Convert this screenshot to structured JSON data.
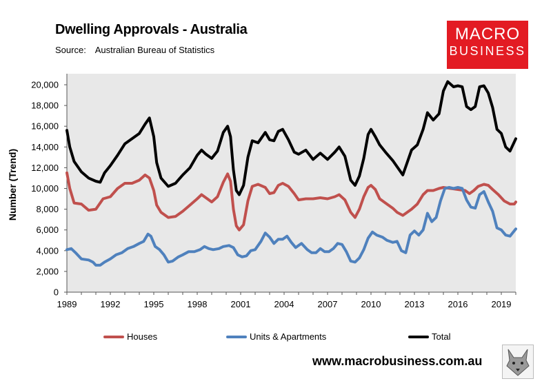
{
  "header": {
    "title": "Dwelling Approvals - Australia",
    "source_label": "Source:",
    "source_value": "Australian Bureau of Statistics"
  },
  "logo": {
    "line1": "MACRO",
    "line2": "BUSINESS"
  },
  "footer": {
    "website": "www.macrobusiness.com.au"
  },
  "colors": {
    "houses": "#c0504d",
    "units": "#4f81bd",
    "total": "#000000",
    "brand": "#e31b23"
  },
  "chart_data": {
    "type": "line",
    "title": "Dwelling Approvals - Australia",
    "xlabel": "",
    "ylabel": "Number (Trend)",
    "xlim": [
      1989,
      2020
    ],
    "ylim": [
      0,
      21000
    ],
    "x_ticks": [
      1989,
      1992,
      1995,
      1998,
      2001,
      2004,
      2007,
      2010,
      2013,
      2016,
      2019
    ],
    "y_ticks": [
      0,
      2000,
      4000,
      6000,
      8000,
      10000,
      12000,
      14000,
      16000,
      18000,
      20000
    ],
    "y_tick_labels": [
      "0",
      "2,000",
      "4,000",
      "6,000",
      "8,000",
      "10,000",
      "12,000",
      "14,000",
      "16,000",
      "18,000",
      "20,000"
    ],
    "grid": false,
    "legend_position": "bottom",
    "series": [
      {
        "name": "Houses",
        "color": "#c0504d",
        "points": [
          [
            1989,
            11500
          ],
          [
            1989.2,
            10000
          ],
          [
            1989.5,
            8600
          ],
          [
            1990,
            8500
          ],
          [
            1990.5,
            7900
          ],
          [
            1991,
            8000
          ],
          [
            1991.5,
            9000
          ],
          [
            1992,
            9200
          ],
          [
            1992.5,
            10000
          ],
          [
            1993,
            10500
          ],
          [
            1993.5,
            10500
          ],
          [
            1994,
            10800
          ],
          [
            1994.4,
            11300
          ],
          [
            1994.7,
            11000
          ],
          [
            1995,
            9800
          ],
          [
            1995.2,
            8400
          ],
          [
            1995.5,
            7700
          ],
          [
            1996,
            7200
          ],
          [
            1996.5,
            7300
          ],
          [
            1997,
            7800
          ],
          [
            1997.5,
            8400
          ],
          [
            1998,
            9000
          ],
          [
            1998.3,
            9400
          ],
          [
            1998.6,
            9100
          ],
          [
            1999,
            8700
          ],
          [
            1999.4,
            9200
          ],
          [
            1999.8,
            10600
          ],
          [
            2000.1,
            11400
          ],
          [
            2000.3,
            10700
          ],
          [
            2000.5,
            8000
          ],
          [
            2000.7,
            6400
          ],
          [
            2000.9,
            6000
          ],
          [
            2001.2,
            6500
          ],
          [
            2001.5,
            8800
          ],
          [
            2001.8,
            10200
          ],
          [
            2002.2,
            10400
          ],
          [
            2002.7,
            10100
          ],
          [
            2003,
            9500
          ],
          [
            2003.3,
            9600
          ],
          [
            2003.6,
            10300
          ],
          [
            2003.9,
            10500
          ],
          [
            2004.3,
            10200
          ],
          [
            2004.7,
            9500
          ],
          [
            2005,
            8900
          ],
          [
            2005.5,
            9000
          ],
          [
            2006,
            9000
          ],
          [
            2006.5,
            9100
          ],
          [
            2007,
            9000
          ],
          [
            2007.5,
            9200
          ],
          [
            2007.8,
            9400
          ],
          [
            2008.2,
            8900
          ],
          [
            2008.6,
            7700
          ],
          [
            2008.9,
            7200
          ],
          [
            2009.2,
            8000
          ],
          [
            2009.5,
            9200
          ],
          [
            2009.8,
            10100
          ],
          [
            2010,
            10300
          ],
          [
            2010.3,
            9900
          ],
          [
            2010.6,
            9000
          ],
          [
            2011,
            8600
          ],
          [
            2011.5,
            8100
          ],
          [
            2011.8,
            7700
          ],
          [
            2012.2,
            7400
          ],
          [
            2012.5,
            7700
          ],
          [
            2012.8,
            8000
          ],
          [
            2013.2,
            8500
          ],
          [
            2013.6,
            9400
          ],
          [
            2013.9,
            9800
          ],
          [
            2014.3,
            9800
          ],
          [
            2014.7,
            10000
          ],
          [
            2015,
            10100
          ],
          [
            2015.5,
            10000
          ],
          [
            2016,
            9900
          ],
          [
            2016.5,
            9800
          ],
          [
            2016.8,
            9500
          ],
          [
            2017.1,
            9800
          ],
          [
            2017.4,
            10200
          ],
          [
            2017.8,
            10400
          ],
          [
            2018.1,
            10300
          ],
          [
            2018.4,
            9900
          ],
          [
            2018.8,
            9400
          ],
          [
            2019.2,
            8800
          ],
          [
            2019.6,
            8500
          ],
          [
            2019.9,
            8500
          ],
          [
            2020,
            8700
          ]
        ]
      },
      {
        "name": "Units & Apartments",
        "color": "#4f81bd",
        "points": [
          [
            1989,
            4100
          ],
          [
            1989.3,
            4200
          ],
          [
            1989.6,
            3800
          ],
          [
            1990,
            3200
          ],
          [
            1990.5,
            3100
          ],
          [
            1990.8,
            2900
          ],
          [
            1991,
            2600
          ],
          [
            1991.3,
            2600
          ],
          [
            1991.6,
            2900
          ],
          [
            1992,
            3200
          ],
          [
            1992.4,
            3600
          ],
          [
            1992.8,
            3800
          ],
          [
            1993.2,
            4200
          ],
          [
            1993.6,
            4400
          ],
          [
            1994,
            4700
          ],
          [
            1994.3,
            4900
          ],
          [
            1994.6,
            5600
          ],
          [
            1994.8,
            5400
          ],
          [
            1995.1,
            4400
          ],
          [
            1995.4,
            4100
          ],
          [
            1995.7,
            3600
          ],
          [
            1996,
            2900
          ],
          [
            1996.3,
            3000
          ],
          [
            1996.7,
            3400
          ],
          [
            1997,
            3600
          ],
          [
            1997.4,
            3900
          ],
          [
            1997.8,
            3900
          ],
          [
            1998.2,
            4100
          ],
          [
            1998.5,
            4400
          ],
          [
            1998.8,
            4200
          ],
          [
            1999.1,
            4100
          ],
          [
            1999.5,
            4200
          ],
          [
            1999.8,
            4400
          ],
          [
            2000.2,
            4500
          ],
          [
            2000.5,
            4300
          ],
          [
            2000.8,
            3600
          ],
          [
            2001.1,
            3400
          ],
          [
            2001.4,
            3500
          ],
          [
            2001.7,
            4000
          ],
          [
            2002,
            4100
          ],
          [
            2002.4,
            4900
          ],
          [
            2002.7,
            5700
          ],
          [
            2003,
            5300
          ],
          [
            2003.3,
            4700
          ],
          [
            2003.6,
            5100
          ],
          [
            2003.9,
            5100
          ],
          [
            2004.2,
            5400
          ],
          [
            2004.5,
            4800
          ],
          [
            2004.8,
            4300
          ],
          [
            2005.2,
            4700
          ],
          [
            2005.6,
            4100
          ],
          [
            2005.9,
            3800
          ],
          [
            2006.2,
            3800
          ],
          [
            2006.5,
            4200
          ],
          [
            2006.8,
            3900
          ],
          [
            2007.1,
            3900
          ],
          [
            2007.4,
            4200
          ],
          [
            2007.7,
            4700
          ],
          [
            2008,
            4600
          ],
          [
            2008.3,
            3900
          ],
          [
            2008.6,
            3000
          ],
          [
            2008.9,
            2900
          ],
          [
            2009.2,
            3300
          ],
          [
            2009.5,
            4100
          ],
          [
            2009.8,
            5200
          ],
          [
            2010.1,
            5800
          ],
          [
            2010.4,
            5500
          ],
          [
            2010.8,
            5300
          ],
          [
            2011.1,
            5000
          ],
          [
            2011.5,
            4800
          ],
          [
            2011.8,
            4900
          ],
          [
            2012.1,
            4000
          ],
          [
            2012.4,
            3800
          ],
          [
            2012.7,
            5500
          ],
          [
            2013,
            5900
          ],
          [
            2013.3,
            5500
          ],
          [
            2013.6,
            6000
          ],
          [
            2013.9,
            7600
          ],
          [
            2014.2,
            6800
          ],
          [
            2014.5,
            7200
          ],
          [
            2014.8,
            8800
          ],
          [
            2015.1,
            10000
          ],
          [
            2015.4,
            10100
          ],
          [
            2015.7,
            10000
          ],
          [
            2016,
            10100
          ],
          [
            2016.3,
            10000
          ],
          [
            2016.6,
            8900
          ],
          [
            2016.9,
            8200
          ],
          [
            2017.2,
            8100
          ],
          [
            2017.5,
            9400
          ],
          [
            2017.8,
            9700
          ],
          [
            2018.1,
            8700
          ],
          [
            2018.4,
            7800
          ],
          [
            2018.7,
            6200
          ],
          [
            2019,
            6000
          ],
          [
            2019.3,
            5500
          ],
          [
            2019.6,
            5400
          ],
          [
            2020,
            6100
          ]
        ]
      },
      {
        "name": "Total",
        "color": "#000000",
        "points": [
          [
            1989,
            15600
          ],
          [
            1989.2,
            14000
          ],
          [
            1989.5,
            12600
          ],
          [
            1990,
            11600
          ],
          [
            1990.5,
            11000
          ],
          [
            1991,
            10700
          ],
          [
            1991.3,
            10600
          ],
          [
            1991.6,
            11500
          ],
          [
            1992,
            12200
          ],
          [
            1992.5,
            13200
          ],
          [
            1993,
            14300
          ],
          [
            1993.5,
            14800
          ],
          [
            1994,
            15300
          ],
          [
            1994.4,
            16200
          ],
          [
            1994.7,
            16800
          ],
          [
            1995,
            15000
          ],
          [
            1995.2,
            12500
          ],
          [
            1995.5,
            11000
          ],
          [
            1996,
            10200
          ],
          [
            1996.5,
            10500
          ],
          [
            1997,
            11300
          ],
          [
            1997.5,
            12000
          ],
          [
            1998,
            13200
          ],
          [
            1998.3,
            13700
          ],
          [
            1998.6,
            13300
          ],
          [
            1999,
            12900
          ],
          [
            1999.4,
            13600
          ],
          [
            1999.8,
            15400
          ],
          [
            2000.1,
            16000
          ],
          [
            2000.3,
            15000
          ],
          [
            2000.5,
            11800
          ],
          [
            2000.7,
            9800
          ],
          [
            2000.9,
            9400
          ],
          [
            2001.2,
            10300
          ],
          [
            2001.5,
            13000
          ],
          [
            2001.8,
            14600
          ],
          [
            2002.2,
            14400
          ],
          [
            2002.7,
            15400
          ],
          [
            2003,
            14700
          ],
          [
            2003.3,
            14600
          ],
          [
            2003.6,
            15500
          ],
          [
            2003.9,
            15700
          ],
          [
            2004.3,
            14700
          ],
          [
            2004.7,
            13500
          ],
          [
            2005,
            13300
          ],
          [
            2005.5,
            13700
          ],
          [
            2006,
            12800
          ],
          [
            2006.5,
            13400
          ],
          [
            2007,
            12800
          ],
          [
            2007.5,
            13500
          ],
          [
            2007.8,
            14000
          ],
          [
            2008.2,
            13100
          ],
          [
            2008.6,
            10800
          ],
          [
            2008.9,
            10300
          ],
          [
            2009.2,
            11200
          ],
          [
            2009.5,
            12900
          ],
          [
            2009.8,
            15200
          ],
          [
            2010,
            15700
          ],
          [
            2010.3,
            15000
          ],
          [
            2010.6,
            14200
          ],
          [
            2011,
            13500
          ],
          [
            2011.5,
            12700
          ],
          [
            2011.8,
            12100
          ],
          [
            2012.2,
            11300
          ],
          [
            2012.5,
            12500
          ],
          [
            2012.8,
            13700
          ],
          [
            2013.2,
            14200
          ],
          [
            2013.6,
            15700
          ],
          [
            2013.9,
            17300
          ],
          [
            2014.3,
            16600
          ],
          [
            2014.7,
            17200
          ],
          [
            2015,
            19400
          ],
          [
            2015.3,
            20300
          ],
          [
            2015.7,
            19800
          ],
          [
            2016,
            19900
          ],
          [
            2016.3,
            19800
          ],
          [
            2016.6,
            17900
          ],
          [
            2016.9,
            17600
          ],
          [
            2017.2,
            17900
          ],
          [
            2017.5,
            19800
          ],
          [
            2017.8,
            19900
          ],
          [
            2018.1,
            19200
          ],
          [
            2018.4,
            17800
          ],
          [
            2018.7,
            15700
          ],
          [
            2019,
            15300
          ],
          [
            2019.3,
            14000
          ],
          [
            2019.6,
            13600
          ],
          [
            2020,
            14800
          ]
        ]
      }
    ]
  }
}
